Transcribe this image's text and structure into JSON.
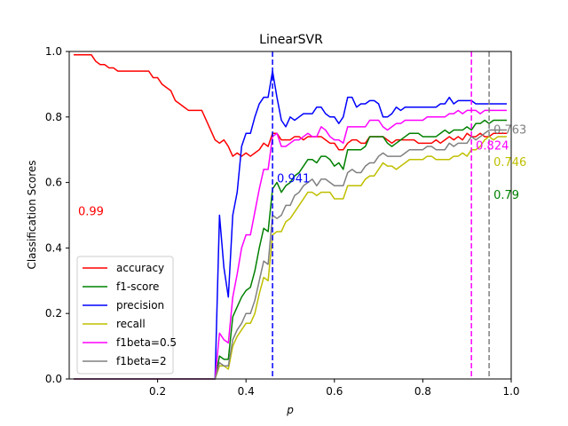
{
  "chart_data": {
    "type": "line",
    "title": "LinearSVR",
    "xlabel": "p",
    "ylabel": "Classification Scores",
    "xlim": [
      0.0,
      1.0
    ],
    "ylim": [
      0.0,
      1.0
    ],
    "xticks": [
      "0.2",
      "0.4",
      "0.6",
      "0.8",
      "1.0"
    ],
    "xtick_values": [
      0.2,
      0.4,
      0.6,
      0.8,
      1.0
    ],
    "yticks": [
      "0.0",
      "0.2",
      "0.4",
      "0.6",
      "0.8",
      "1.0"
    ],
    "ytick_values": [
      0.0,
      0.2,
      0.4,
      0.6,
      0.8,
      1.0
    ],
    "grid": false,
    "legend_position": "lower-left",
    "x": [
      0.01,
      0.02,
      0.03,
      0.04,
      0.05,
      0.06,
      0.07,
      0.08,
      0.09,
      0.1,
      0.11,
      0.12,
      0.13,
      0.14,
      0.15,
      0.16,
      0.17,
      0.18,
      0.19,
      0.2,
      0.21,
      0.22,
      0.23,
      0.24,
      0.25,
      0.26,
      0.27,
      0.28,
      0.29,
      0.3,
      0.31,
      0.32,
      0.33,
      0.34,
      0.35,
      0.36,
      0.37,
      0.38,
      0.39,
      0.4,
      0.41,
      0.42,
      0.43,
      0.44,
      0.45,
      0.46,
      0.47,
      0.48,
      0.49,
      0.5,
      0.51,
      0.52,
      0.53,
      0.54,
      0.55,
      0.56,
      0.57,
      0.58,
      0.59,
      0.6,
      0.61,
      0.62,
      0.63,
      0.64,
      0.65,
      0.66,
      0.67,
      0.68,
      0.69,
      0.7,
      0.71,
      0.72,
      0.73,
      0.74,
      0.75,
      0.76,
      0.77,
      0.78,
      0.79,
      0.8,
      0.81,
      0.82,
      0.83,
      0.84,
      0.85,
      0.86,
      0.87,
      0.88,
      0.89,
      0.9,
      0.91,
      0.92,
      0.93,
      0.94,
      0.95,
      0.96,
      0.97,
      0.98,
      0.99
    ],
    "series": [
      {
        "name": "accuracy",
        "color": "#ff0000",
        "values": [
          0.99,
          0.99,
          0.99,
          0.99,
          0.99,
          0.97,
          0.96,
          0.96,
          0.95,
          0.95,
          0.94,
          0.94,
          0.94,
          0.94,
          0.94,
          0.94,
          0.94,
          0.94,
          0.92,
          0.92,
          0.9,
          0.89,
          0.88,
          0.85,
          0.84,
          0.83,
          0.82,
          0.82,
          0.82,
          0.82,
          0.79,
          0.76,
          0.73,
          0.72,
          0.73,
          0.71,
          0.68,
          0.69,
          0.68,
          0.69,
          0.68,
          0.69,
          0.7,
          0.72,
          0.71,
          0.75,
          0.75,
          0.73,
          0.73,
          0.73,
          0.74,
          0.74,
          0.73,
          0.74,
          0.74,
          0.74,
          0.74,
          0.73,
          0.72,
          0.72,
          0.7,
          0.7,
          0.72,
          0.73,
          0.73,
          0.72,
          0.72,
          0.74,
          0.74,
          0.74,
          0.74,
          0.73,
          0.72,
          0.73,
          0.73,
          0.73,
          0.73,
          0.73,
          0.72,
          0.72,
          0.72,
          0.72,
          0.73,
          0.72,
          0.73,
          0.74,
          0.73,
          0.74,
          0.73,
          0.75,
          0.74,
          0.74,
          0.75,
          0.74,
          0.74,
          0.75,
          0.75,
          0.75,
          0.75
        ]
      },
      {
        "name": "f1-score",
        "color": "#008000",
        "values": [
          0,
          0,
          0,
          0,
          0,
          0,
          0,
          0,
          0,
          0,
          0,
          0,
          0,
          0,
          0,
          0,
          0,
          0,
          0,
          0,
          0,
          0,
          0,
          0,
          0,
          0,
          0,
          0,
          0,
          0,
          0,
          0,
          0.0,
          0.07,
          0.06,
          0.06,
          0.19,
          0.22,
          0.25,
          0.27,
          0.28,
          0.33,
          0.4,
          0.46,
          0.45,
          0.58,
          0.6,
          0.57,
          0.59,
          0.6,
          0.62,
          0.63,
          0.65,
          0.67,
          0.67,
          0.66,
          0.68,
          0.68,
          0.67,
          0.65,
          0.66,
          0.64,
          0.7,
          0.7,
          0.7,
          0.7,
          0.71,
          0.74,
          0.74,
          0.74,
          0.74,
          0.72,
          0.71,
          0.72,
          0.73,
          0.74,
          0.75,
          0.75,
          0.75,
          0.74,
          0.74,
          0.74,
          0.74,
          0.75,
          0.76,
          0.75,
          0.76,
          0.76,
          0.76,
          0.77,
          0.76,
          0.78,
          0.78,
          0.79,
          0.78,
          0.79,
          0.79,
          0.79,
          0.79
        ]
      },
      {
        "name": "precision",
        "color": "#0000ff",
        "values": [
          0,
          0,
          0,
          0,
          0,
          0,
          0,
          0,
          0,
          0,
          0,
          0,
          0,
          0,
          0,
          0,
          0,
          0,
          0,
          0,
          0,
          0,
          0,
          0,
          0,
          0,
          0,
          0,
          0,
          0,
          0,
          0,
          0.0,
          0.5,
          0.34,
          0.25,
          0.5,
          0.57,
          0.71,
          0.75,
          0.75,
          0.8,
          0.84,
          0.86,
          0.86,
          0.94,
          0.86,
          0.79,
          0.77,
          0.8,
          0.79,
          0.8,
          0.81,
          0.81,
          0.81,
          0.83,
          0.83,
          0.81,
          0.8,
          0.8,
          0.78,
          0.8,
          0.86,
          0.86,
          0.83,
          0.84,
          0.84,
          0.85,
          0.85,
          0.84,
          0.8,
          0.8,
          0.81,
          0.83,
          0.82,
          0.83,
          0.83,
          0.83,
          0.83,
          0.83,
          0.83,
          0.83,
          0.83,
          0.84,
          0.84,
          0.86,
          0.84,
          0.85,
          0.85,
          0.85,
          0.85,
          0.84,
          0.84,
          0.84,
          0.84,
          0.84,
          0.84,
          0.84,
          0.84
        ]
      },
      {
        "name": "recall",
        "color": "#bfbf00",
        "values": [
          0,
          0,
          0,
          0,
          0,
          0,
          0,
          0,
          0,
          0,
          0,
          0,
          0,
          0,
          0,
          0,
          0,
          0,
          0,
          0,
          0,
          0,
          0,
          0,
          0,
          0,
          0,
          0,
          0,
          0,
          0,
          0,
          0.0,
          0.04,
          0.04,
          0.03,
          0.1,
          0.13,
          0.15,
          0.17,
          0.17,
          0.2,
          0.26,
          0.31,
          0.3,
          0.44,
          0.45,
          0.45,
          0.48,
          0.49,
          0.51,
          0.53,
          0.55,
          0.57,
          0.57,
          0.56,
          0.57,
          0.57,
          0.57,
          0.55,
          0.55,
          0.55,
          0.59,
          0.59,
          0.59,
          0.59,
          0.61,
          0.62,
          0.62,
          0.64,
          0.66,
          0.65,
          0.65,
          0.64,
          0.65,
          0.66,
          0.67,
          0.67,
          0.67,
          0.67,
          0.68,
          0.68,
          0.67,
          0.67,
          0.67,
          0.67,
          0.68,
          0.68,
          0.69,
          0.68,
          0.7,
          0.7,
          0.71,
          0.73,
          0.74,
          0.73,
          0.74,
          0.74,
          0.74
        ]
      },
      {
        "name": "f1beta=0.5",
        "color": "#ff00ff",
        "values": [
          0,
          0,
          0,
          0,
          0,
          0,
          0,
          0,
          0,
          0,
          0,
          0,
          0,
          0,
          0,
          0,
          0,
          0,
          0,
          0,
          0,
          0,
          0,
          0,
          0,
          0,
          0,
          0,
          0,
          0,
          0,
          0,
          0.0,
          0.14,
          0.12,
          0.11,
          0.25,
          0.32,
          0.4,
          0.44,
          0.44,
          0.51,
          0.58,
          0.64,
          0.64,
          0.74,
          0.75,
          0.71,
          0.71,
          0.72,
          0.73,
          0.73,
          0.74,
          0.75,
          0.74,
          0.74,
          0.77,
          0.76,
          0.74,
          0.73,
          0.73,
          0.72,
          0.77,
          0.77,
          0.77,
          0.77,
          0.77,
          0.79,
          0.79,
          0.79,
          0.77,
          0.76,
          0.77,
          0.78,
          0.78,
          0.79,
          0.79,
          0.79,
          0.79,
          0.79,
          0.8,
          0.8,
          0.8,
          0.8,
          0.8,
          0.81,
          0.81,
          0.82,
          0.81,
          0.82,
          0.82,
          0.82,
          0.81,
          0.82,
          0.82,
          0.82,
          0.82,
          0.82,
          0.82
        ]
      },
      {
        "name": "f1beta=2",
        "color": "#808080",
        "values": [
          0,
          0,
          0,
          0,
          0,
          0,
          0,
          0,
          0,
          0,
          0,
          0,
          0,
          0,
          0,
          0,
          0,
          0,
          0,
          0,
          0,
          0,
          0,
          0,
          0,
          0,
          0,
          0,
          0,
          0,
          0,
          0,
          0.0,
          0.05,
          0.04,
          0.04,
          0.12,
          0.15,
          0.17,
          0.2,
          0.2,
          0.24,
          0.3,
          0.36,
          0.35,
          0.5,
          0.49,
          0.5,
          0.53,
          0.53,
          0.56,
          0.57,
          0.59,
          0.6,
          0.61,
          0.59,
          0.61,
          0.61,
          0.6,
          0.59,
          0.59,
          0.59,
          0.63,
          0.64,
          0.63,
          0.63,
          0.65,
          0.66,
          0.66,
          0.68,
          0.69,
          0.68,
          0.68,
          0.68,
          0.68,
          0.69,
          0.7,
          0.7,
          0.7,
          0.7,
          0.71,
          0.71,
          0.7,
          0.7,
          0.7,
          0.72,
          0.71,
          0.72,
          0.72,
          0.72,
          0.74,
          0.73,
          0.74,
          0.75,
          0.76,
          0.76,
          0.76,
          0.76,
          0.76
        ]
      }
    ],
    "vlines": [
      {
        "x": 0.46,
        "color": "#0000ff"
      },
      {
        "x": 0.91,
        "color": "#ff00ff"
      },
      {
        "x": 0.95,
        "color": "#808080"
      }
    ],
    "annotations": [
      {
        "text": "0.99",
        "x": 0.02,
        "y": 0.5,
        "color": "#ff0000"
      },
      {
        "text": "0.941",
        "x": 0.47,
        "y": 0.6,
        "color": "#0000ff"
      },
      {
        "text": "0.824",
        "x": 0.92,
        "y": 0.7,
        "color": "#ff00ff"
      },
      {
        "text": "0.763",
        "x": 0.96,
        "y": 0.75,
        "color": "#808080"
      },
      {
        "text": "0.746",
        "x": 0.96,
        "y": 0.65,
        "color": "#bfbf00"
      },
      {
        "text": "0.79",
        "x": 0.96,
        "y": 0.55,
        "color": "#008000"
      }
    ]
  }
}
